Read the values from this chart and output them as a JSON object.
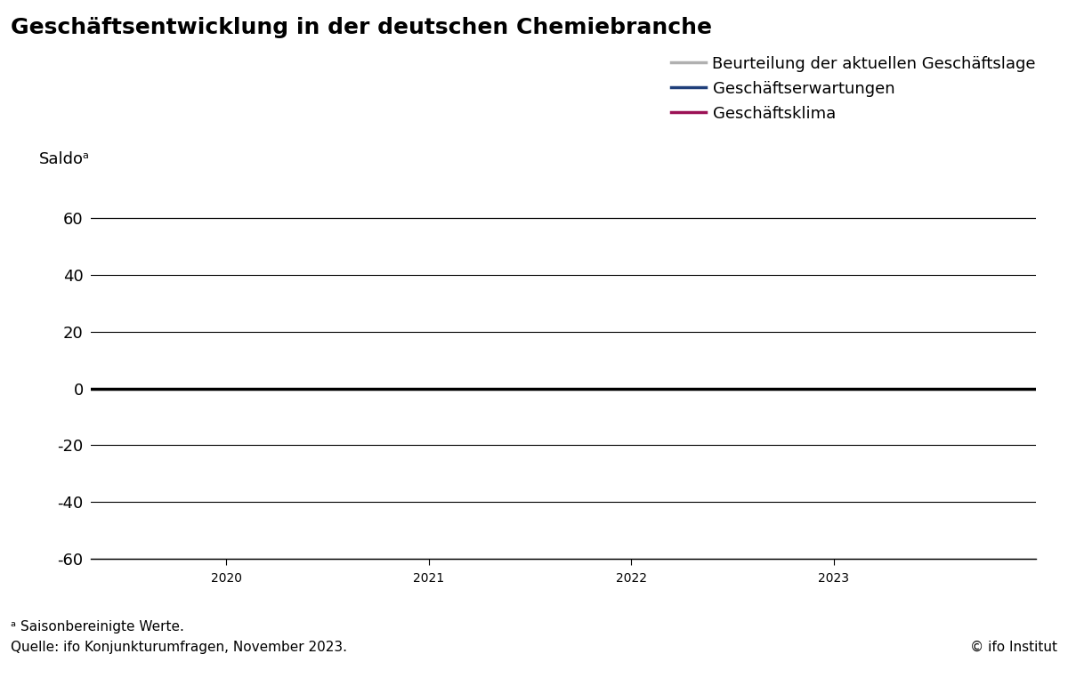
{
  "title": "Geschäftsentwicklung in der deutschen Chemiebranche",
  "ylabel": "Saldoᵃ",
  "ylim": [
    -65,
    70
  ],
  "yticks": [
    -60,
    -40,
    -20,
    0,
    20,
    40,
    60
  ],
  "xlim": [
    2019.33,
    2024.0
  ],
  "xticks": [
    2020,
    2021,
    2022,
    2023
  ],
  "xticklabels": [
    "2020",
    "2021",
    "2022",
    "2023"
  ],
  "legend_items": [
    {
      "label": "Beurteilung der aktuellen Geschäftslage",
      "color": "#b0b0b0"
    },
    {
      "label": "Geschäftserwartungen",
      "color": "#1f3f7a"
    },
    {
      "label": "Geschäftsklima",
      "color": "#9b1155"
    }
  ],
  "footnote_a": "ᵃ Saisonbereinigte Werte.",
  "source": "Quelle: ifo Konjunkturumfragen, November 2023.",
  "copyright": "© ifo Institut",
  "background_color": "#ffffff",
  "spine_color": "#000000",
  "gridline_color": "#000000",
  "title_fontsize": 18,
  "ylabel_fontsize": 13,
  "tick_fontsize": 13,
  "legend_fontsize": 13,
  "footer_fontsize": 11
}
